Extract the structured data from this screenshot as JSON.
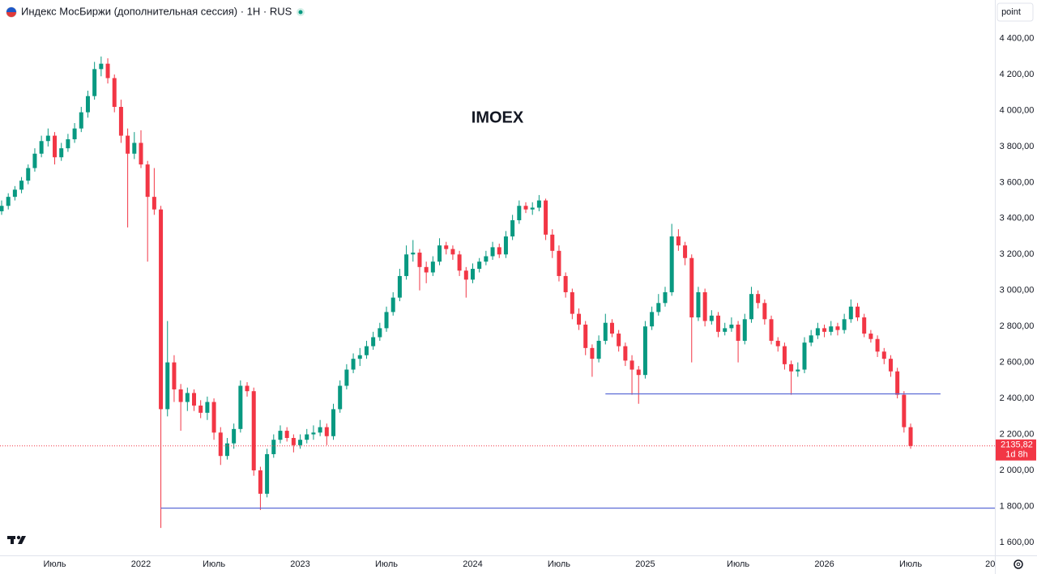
{
  "header": {
    "title": "Индекс МосБиржи (дополнительная сессия) · 1H · RUS",
    "scale_label": "point"
  },
  "chart_data": {
    "type": "candlestick",
    "annotation": "IMOEX",
    "up_color": "#089981",
    "down_color": "#f23645",
    "categories": [
      null,
      null,
      null,
      null,
      null,
      null,
      null,
      null,
      "Июль",
      null,
      null,
      null,
      null,
      null,
      null,
      null,
      null,
      null,
      null,
      null,
      null,
      "2022",
      null,
      null,
      null,
      null,
      null,
      null,
      null,
      null,
      null,
      null,
      "Июль",
      null,
      null,
      null,
      null,
      null,
      null,
      null,
      null,
      null,
      null,
      null,
      null,
      "2023",
      null,
      null,
      null,
      null,
      null,
      null,
      null,
      null,
      null,
      null,
      null,
      null,
      "Июль",
      null,
      null,
      null,
      null,
      null,
      null,
      null,
      null,
      null,
      null,
      null,
      null,
      "2024",
      null,
      null,
      null,
      null,
      null,
      null,
      null,
      null,
      null,
      null,
      null,
      null,
      "Июль",
      null,
      null,
      null,
      null,
      null,
      null,
      null,
      null,
      null,
      null,
      null,
      null,
      "2025",
      null,
      null,
      null,
      null,
      null,
      null,
      null,
      null,
      null,
      null,
      null,
      null,
      null,
      "Июль",
      null,
      null,
      null,
      null,
      null,
      null,
      null,
      null,
      null,
      null,
      null,
      null,
      "2026",
      null,
      null,
      null,
      null,
      null,
      null,
      null,
      null,
      null,
      null,
      null,
      null,
      "Июль",
      null,
      null,
      null,
      null,
      null,
      null,
      null,
      null,
      null,
      null,
      null,
      "20"
    ],
    "candles": [
      [
        3440,
        3500,
        3420,
        3470
      ],
      [
        3470,
        3540,
        3450,
        3520
      ],
      [
        3520,
        3580,
        3500,
        3560
      ],
      [
        3560,
        3630,
        3540,
        3610
      ],
      [
        3610,
        3700,
        3590,
        3680
      ],
      [
        3680,
        3790,
        3660,
        3760
      ],
      [
        3760,
        3860,
        3740,
        3830
      ],
      [
        3830,
        3900,
        3800,
        3860
      ],
      [
        3860,
        3880,
        3700,
        3740
      ],
      [
        3740,
        3820,
        3720,
        3790
      ],
      [
        3790,
        3870,
        3770,
        3840
      ],
      [
        3840,
        3930,
        3820,
        3900
      ],
      [
        3900,
        4020,
        3880,
        3990
      ],
      [
        3990,
        4110,
        3960,
        4080
      ],
      [
        4080,
        4270,
        4060,
        4230
      ],
      [
        4230,
        4300,
        4190,
        4260
      ],
      [
        4260,
        4290,
        4150,
        4180
      ],
      [
        4180,
        4200,
        3990,
        4020
      ],
      [
        4020,
        4060,
        3820,
        3860
      ],
      [
        3860,
        3900,
        3350,
        3760
      ],
      [
        3760,
        3880,
        3730,
        3820
      ],
      [
        3820,
        3890,
        3680,
        3700
      ],
      [
        3700,
        3720,
        3160,
        3520
      ],
      [
        3520,
        3680,
        3420,
        3450
      ],
      [
        3450,
        3470,
        1680,
        2340
      ],
      [
        2340,
        2830,
        2300,
        2600
      ],
      [
        2600,
        2640,
        2380,
        2450
      ],
      [
        2450,
        2480,
        2220,
        2380
      ],
      [
        2380,
        2460,
        2330,
        2430
      ],
      [
        2430,
        2450,
        2330,
        2360
      ],
      [
        2360,
        2390,
        2290,
        2320
      ],
      [
        2320,
        2410,
        2280,
        2380
      ],
      [
        2380,
        2400,
        2170,
        2210
      ],
      [
        2210,
        2240,
        2030,
        2080
      ],
      [
        2080,
        2180,
        2060,
        2150
      ],
      [
        2150,
        2260,
        2120,
        2230
      ],
      [
        2230,
        2500,
        2210,
        2470
      ],
      [
        2470,
        2490,
        2410,
        2440
      ],
      [
        2440,
        2460,
        1970,
        2000
      ],
      [
        2000,
        2020,
        1780,
        1870
      ],
      [
        1870,
        2120,
        1850,
        2090
      ],
      [
        2090,
        2200,
        2070,
        2170
      ],
      [
        2170,
        2250,
        2150,
        2220
      ],
      [
        2220,
        2240,
        2160,
        2180
      ],
      [
        2180,
        2200,
        2100,
        2140
      ],
      [
        2140,
        2200,
        2120,
        2170
      ],
      [
        2170,
        2230,
        2150,
        2200
      ],
      [
        2200,
        2250,
        2170,
        2210
      ],
      [
        2210,
        2280,
        2190,
        2240
      ],
      [
        2240,
        2260,
        2140,
        2190
      ],
      [
        2190,
        2370,
        2170,
        2340
      ],
      [
        2340,
        2500,
        2320,
        2470
      ],
      [
        2470,
        2590,
        2450,
        2560
      ],
      [
        2560,
        2650,
        2540,
        2620
      ],
      [
        2620,
        2680,
        2580,
        2640
      ],
      [
        2640,
        2720,
        2620,
        2690
      ],
      [
        2690,
        2770,
        2670,
        2740
      ],
      [
        2740,
        2820,
        2720,
        2790
      ],
      [
        2790,
        2910,
        2770,
        2880
      ],
      [
        2880,
        2990,
        2860,
        2960
      ],
      [
        2960,
        3120,
        2940,
        3080
      ],
      [
        3080,
        3250,
        3060,
        3200
      ],
      [
        3200,
        3280,
        3160,
        3210
      ],
      [
        3210,
        3230,
        3000,
        3130
      ],
      [
        3130,
        3160,
        3040,
        3100
      ],
      [
        3100,
        3190,
        3080,
        3160
      ],
      [
        3160,
        3290,
        3140,
        3250
      ],
      [
        3250,
        3270,
        3200,
        3230
      ],
      [
        3230,
        3250,
        3170,
        3200
      ],
      [
        3200,
        3220,
        3080,
        3110
      ],
      [
        3110,
        3130,
        2960,
        3060
      ],
      [
        3060,
        3150,
        3040,
        3120
      ],
      [
        3120,
        3180,
        3100,
        3160
      ],
      [
        3160,
        3220,
        3140,
        3190
      ],
      [
        3190,
        3270,
        3170,
        3240
      ],
      [
        3240,
        3260,
        3180,
        3200
      ],
      [
        3200,
        3330,
        3180,
        3300
      ],
      [
        3300,
        3420,
        3280,
        3390
      ],
      [
        3390,
        3500,
        3370,
        3470
      ],
      [
        3470,
        3490,
        3430,
        3450
      ],
      [
        3450,
        3490,
        3420,
        3460
      ],
      [
        3460,
        3530,
        3440,
        3500
      ],
      [
        3500,
        3510,
        3280,
        3310
      ],
      [
        3310,
        3340,
        3180,
        3220
      ],
      [
        3220,
        3250,
        3050,
        3080
      ],
      [
        3080,
        3100,
        2960,
        2990
      ],
      [
        2990,
        3010,
        2840,
        2870
      ],
      [
        2870,
        2900,
        2780,
        2810
      ],
      [
        2810,
        2830,
        2640,
        2680
      ],
      [
        2680,
        2700,
        2520,
        2620
      ],
      [
        2620,
        2750,
        2600,
        2720
      ],
      [
        2720,
        2870,
        2700,
        2820
      ],
      [
        2820,
        2840,
        2740,
        2760
      ],
      [
        2760,
        2780,
        2660,
        2690
      ],
      [
        2690,
        2710,
        2580,
        2610
      ],
      [
        2610,
        2640,
        2420,
        2560
      ],
      [
        2560,
        2580,
        2370,
        2530
      ],
      [
        2530,
        2830,
        2510,
        2800
      ],
      [
        2800,
        2910,
        2780,
        2880
      ],
      [
        2880,
        2980,
        2860,
        2930
      ],
      [
        2930,
        3020,
        2910,
        2990
      ],
      [
        2990,
        3370,
        2970,
        3300
      ],
      [
        3300,
        3340,
        3220,
        3250
      ],
      [
        3250,
        3270,
        3140,
        3180
      ],
      [
        3180,
        3200,
        2600,
        2850
      ],
      [
        2850,
        3020,
        2830,
        2990
      ],
      [
        2990,
        3010,
        2800,
        2830
      ],
      [
        2830,
        2890,
        2810,
        2860
      ],
      [
        2860,
        2880,
        2740,
        2770
      ],
      [
        2770,
        2820,
        2750,
        2790
      ],
      [
        2790,
        2850,
        2770,
        2810
      ],
      [
        2810,
        2830,
        2600,
        2720
      ],
      [
        2720,
        2870,
        2700,
        2840
      ],
      [
        2840,
        3020,
        2820,
        2980
      ],
      [
        2980,
        3000,
        2900,
        2930
      ],
      [
        2930,
        2950,
        2810,
        2840
      ],
      [
        2840,
        2860,
        2700,
        2720
      ],
      [
        2720,
        2740,
        2660,
        2690
      ],
      [
        2690,
        2710,
        2560,
        2590
      ],
      [
        2590,
        2610,
        2420,
        2550
      ],
      [
        2550,
        2600,
        2520,
        2560
      ],
      [
        2560,
        2740,
        2540,
        2710
      ],
      [
        2710,
        2780,
        2690,
        2750
      ],
      [
        2750,
        2820,
        2730,
        2790
      ],
      [
        2790,
        2810,
        2740,
        2770
      ],
      [
        2770,
        2830,
        2750,
        2800
      ],
      [
        2800,
        2820,
        2750,
        2780
      ],
      [
        2780,
        2870,
        2760,
        2840
      ],
      [
        2840,
        2950,
        2820,
        2910
      ],
      [
        2910,
        2930,
        2830,
        2850
      ],
      [
        2850,
        2870,
        2740,
        2760
      ],
      [
        2760,
        2780,
        2710,
        2730
      ],
      [
        2730,
        2750,
        2630,
        2660
      ],
      [
        2660,
        2680,
        2590,
        2620
      ],
      [
        2620,
        2640,
        2520,
        2550
      ],
      [
        2550,
        2570,
        2400,
        2420
      ],
      [
        2420,
        2440,
        2210,
        2240
      ],
      [
        2240,
        2260,
        2120,
        2135.82
      ],
      null,
      null,
      null,
      null,
      null,
      null,
      null,
      null,
      null,
      null,
      null,
      null
    ],
    "ylim": [
      1424,
      4614
    ],
    "yticks": [
      {
        "value": 1600,
        "label": "1 600,00"
      },
      {
        "value": 1800,
        "label": "1 800,00"
      },
      {
        "value": 2000,
        "label": "2 000,00"
      },
      {
        "value": 2200,
        "label": "2 200,00"
      },
      {
        "value": 2400,
        "label": "2 400,00"
      },
      {
        "value": 2600,
        "label": "2 600,00"
      },
      {
        "value": 2800,
        "label": "2 800,00"
      },
      {
        "value": 3000,
        "label": "3 000,00"
      },
      {
        "value": 3200,
        "label": "3 200,00"
      },
      {
        "value": 3400,
        "label": "3 400,00"
      },
      {
        "value": 3600,
        "label": "3 600,00"
      },
      {
        "value": 3800,
        "label": "3 800,00"
      },
      {
        "value": 4000,
        "label": "4 000,00"
      },
      {
        "value": 4200,
        "label": "4 200,00"
      },
      {
        "value": 4400,
        "label": "4 400,00"
      }
    ],
    "hlines": [
      {
        "value": 2425,
        "from": 91,
        "to": 141.5,
        "color": "#5b6bd6"
      },
      {
        "value": 1790,
        "from": 24,
        "to": 149.7,
        "color": "#5b6bd6"
      }
    ],
    "last_price": {
      "value": 2135.82,
      "label": "2135,82",
      "countdown": "1d 8h"
    }
  }
}
